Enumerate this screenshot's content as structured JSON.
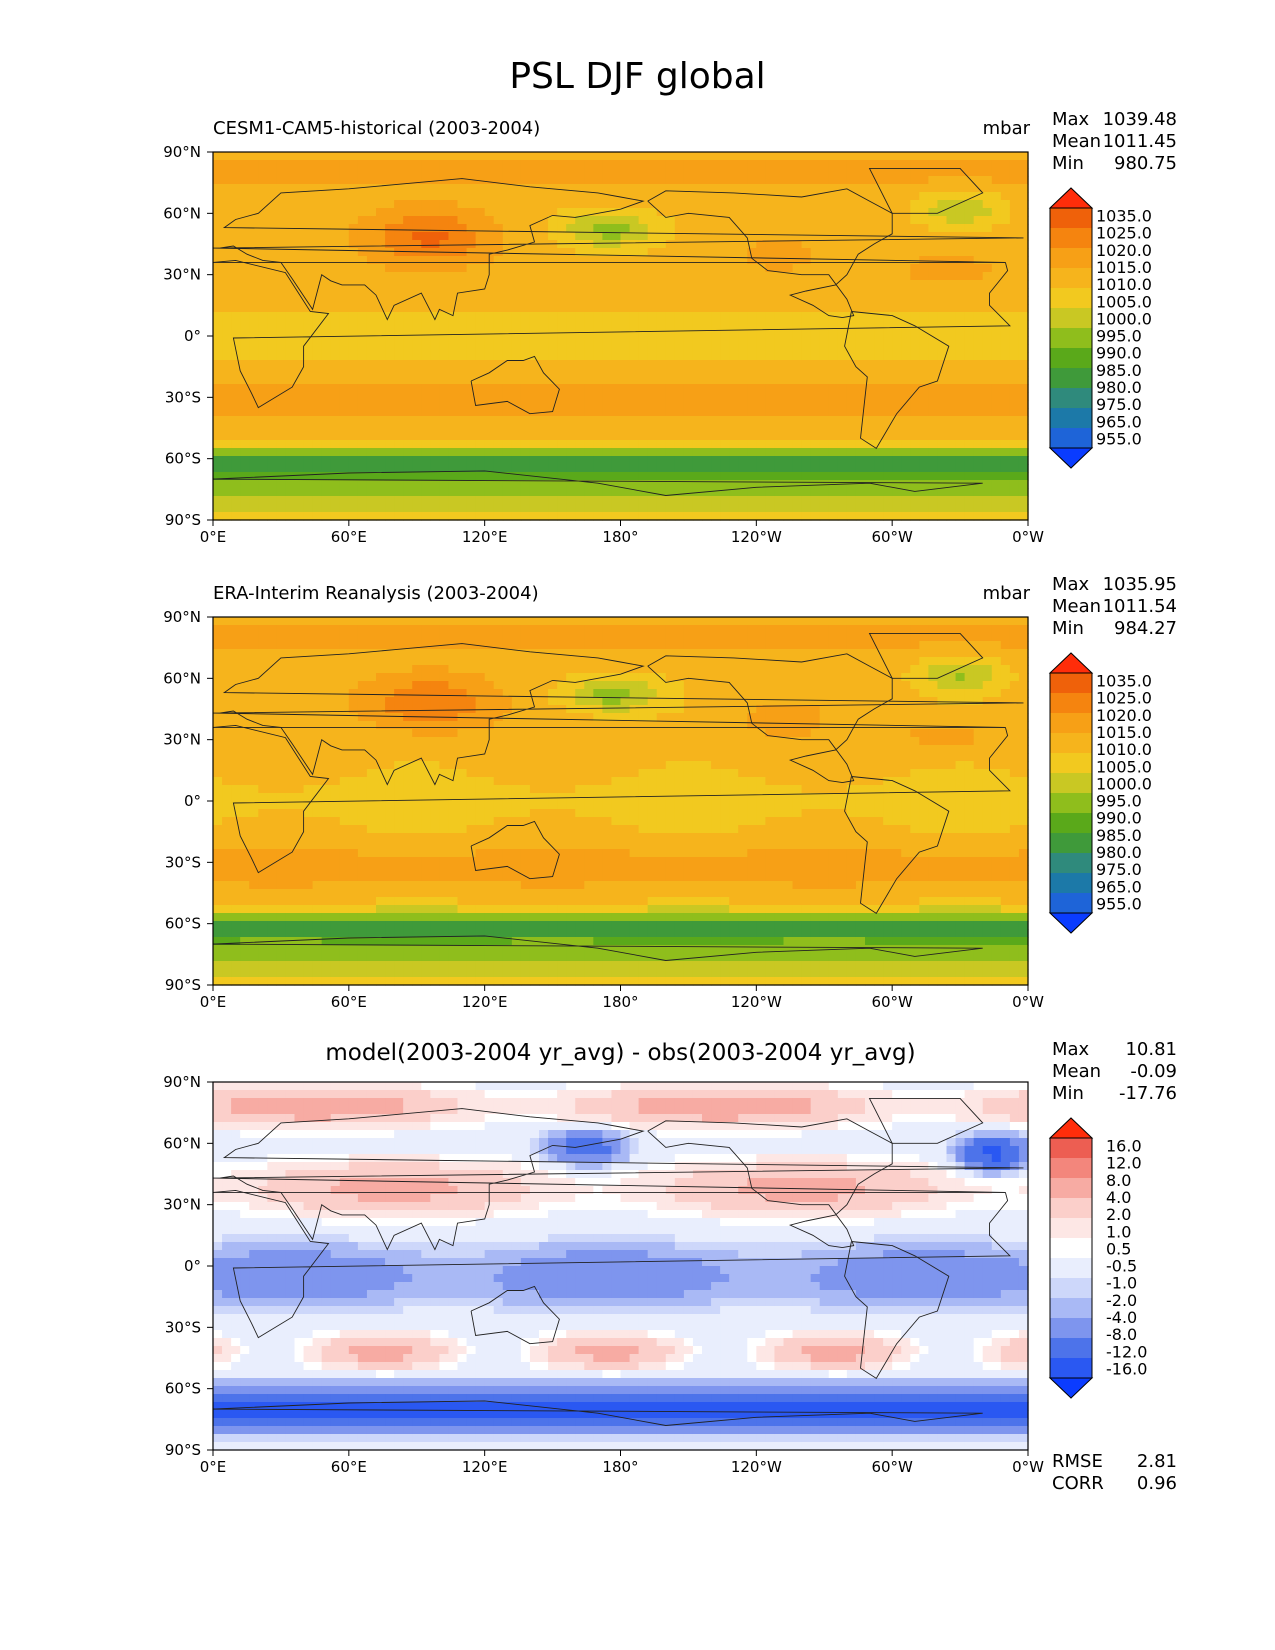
{
  "main_title": "PSL DJF global",
  "axis_labels": {
    "x": [
      "0°E",
      "60°E",
      "120°E",
      "180°",
      "120°W",
      "60°W",
      "0°W"
    ],
    "y": [
      "90°N",
      "60°N",
      "30°N",
      "0°",
      "30°S",
      "60°S",
      "90°S"
    ]
  },
  "panels": [
    {
      "title": "CESM1-CAM5-historical (2003-2004)",
      "units": "mbar",
      "stats": {
        "max_label": "Max",
        "max": "1039.48",
        "mean_label": "Mean",
        "mean": "1011.45",
        "min_label": "Min",
        "min": "980.75"
      },
      "colorbar": [
        "1035.0",
        "1025.0",
        "1020.0",
        "1015.0",
        "1010.0",
        "1005.0",
        "1000.0",
        "995.0",
        "990.0",
        "985.0",
        "980.0",
        "975.0",
        "965.0",
        "955.0"
      ]
    },
    {
      "title": "ERA-Interim Reanalysis (2003-2004)",
      "units": "mbar",
      "stats": {
        "max_label": "Max",
        "max": "1035.95",
        "mean_label": "Mean",
        "mean": "1011.54",
        "min_label": "Min",
        "min": "984.27"
      },
      "colorbar": [
        "1035.0",
        "1025.0",
        "1020.0",
        "1015.0",
        "1010.0",
        "1005.0",
        "1000.0",
        "995.0",
        "990.0",
        "985.0",
        "980.0",
        "975.0",
        "965.0",
        "955.0"
      ]
    },
    {
      "title": "model(2003-2004 yr_avg) - obs(2003-2004 yr_avg)",
      "units": "",
      "stats": {
        "max_label": "Max",
        "max": "10.81",
        "mean_label": "Mean",
        "mean": "-0.09",
        "min_label": "Min",
        "min": "-17.76"
      },
      "colorbar": [
        "16.0",
        "12.0",
        "8.0",
        "4.0",
        "2.0",
        "1.0",
        "0.5",
        "-0.5",
        "-1.0",
        "-2.0",
        "-4.0",
        "-8.0",
        "-12.0",
        "-16.0"
      ],
      "rmse_label": "RMSE",
      "rmse": "2.81",
      "corr_label": "CORR",
      "corr": "0.96"
    }
  ],
  "chart_data": [
    {
      "type": "heatmap",
      "title": "CESM1-CAM5-historical (2003-2004)",
      "variable": "PSL",
      "season": "DJF",
      "units": "mbar",
      "x_ticks": [
        "0°E",
        "60°E",
        "120°E",
        "180°",
        "120°W",
        "60°W",
        "0°W"
      ],
      "y_ticks": [
        "90°N",
        "60°N",
        "30°N",
        "0°",
        "30°S",
        "60°S",
        "90°S"
      ],
      "levels": [
        955,
        965,
        975,
        980,
        985,
        990,
        995,
        1000,
        1005,
        1010,
        1015,
        1020,
        1025,
        1035
      ],
      "max": 1039.48,
      "mean": 1011.45,
      "min": 980.75
    },
    {
      "type": "heatmap",
      "title": "ERA-Interim Reanalysis (2003-2004)",
      "variable": "PSL",
      "season": "DJF",
      "units": "mbar",
      "x_ticks": [
        "0°E",
        "60°E",
        "120°E",
        "180°",
        "120°W",
        "60°W",
        "0°W"
      ],
      "y_ticks": [
        "90°N",
        "60°N",
        "30°N",
        "0°",
        "30°S",
        "60°S",
        "90°S"
      ],
      "levels": [
        955,
        965,
        975,
        980,
        985,
        990,
        995,
        1000,
        1005,
        1010,
        1015,
        1020,
        1025,
        1035
      ],
      "max": 1035.95,
      "mean": 1011.54,
      "min": 984.27
    },
    {
      "type": "heatmap",
      "title": "model(2003-2004 yr_avg) - obs(2003-2004 yr_avg)",
      "variable": "PSL",
      "season": "DJF",
      "x_ticks": [
        "0°E",
        "60°E",
        "120°E",
        "180°",
        "120°W",
        "60°W",
        "0°W"
      ],
      "y_ticks": [
        "90°N",
        "60°N",
        "30°N",
        "0°",
        "30°S",
        "60°S",
        "90°S"
      ],
      "levels": [
        -16,
        -12,
        -8,
        -4,
        -2,
        -1,
        -0.5,
        0.5,
        1,
        2,
        4,
        8,
        12,
        16
      ],
      "max": 10.81,
      "mean": -0.09,
      "min": -17.76,
      "rmse": 2.81,
      "corr": 0.96
    }
  ],
  "colors": {
    "psl_palette": [
      "#0a3cff",
      "#1e64d8",
      "#1c79a8",
      "#2f8a7c",
      "#3f9a3a",
      "#5aa91a",
      "#8fbe1c",
      "#c9c823",
      "#f2c91f",
      "#f6b41c",
      "#f7a016",
      "#f5840f",
      "#ef610a",
      "#ff2d0a"
    ],
    "diff_palette": [
      "#0b3cff",
      "#2a58f2",
      "#4d73ea",
      "#7e95ee",
      "#a9b9f5",
      "#cdd7fa",
      "#e9eefd",
      "#ffffff",
      "#fde7e5",
      "#fbcfca",
      "#f7aba3",
      "#f3867c",
      "#ed5e52",
      "#ff2d0a"
    ]
  }
}
